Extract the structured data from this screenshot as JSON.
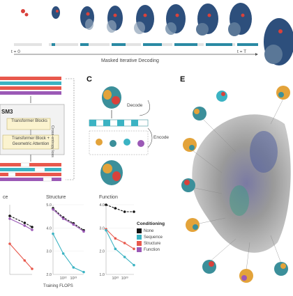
{
  "panel_a": {
    "caption": "Masked Iterative Decoding",
    "t_start": "t = 0",
    "t_end": "t = T"
  },
  "panel_b": {
    "model_name": "SM3",
    "block_outer": "Transformer Block + Geometric Attention",
    "block_inner": "Transformer Blocks",
    "loss_label": "Cross-entropy loss"
  },
  "panel_c": {
    "letter": "C",
    "decode_label": "Decode",
    "encode_label": "Encode"
  },
  "panel_e": {
    "letter": "E"
  },
  "legend": {
    "title": "Conditioning",
    "items": [
      {
        "label": "None",
        "color": "#111111"
      },
      {
        "label": "Sequence",
        "color": "#3bb3c3"
      },
      {
        "label": "Structure",
        "color": "#e8584c"
      },
      {
        "label": "Function",
        "color": "#9b59b6"
      }
    ]
  },
  "chart_data": [
    {
      "type": "line",
      "title": "ce",
      "xlabel": "",
      "series": [
        {
          "name": "None",
          "color": "#111111",
          "x": [
            1e+21,
            1e+23,
            1e+24
          ],
          "y": [
            4.6,
            4.35,
            4.2
          ]
        },
        {
          "name": "Function",
          "color": "#9b59b6",
          "x": [
            1e+21,
            1e+23,
            1e+24
          ],
          "y": [
            4.5,
            4.25,
            4.1
          ]
        },
        {
          "name": "Structure",
          "color": "#e8584c",
          "x": [
            1e+21,
            1e+23,
            1e+24
          ],
          "y": [
            3.6,
            3.0,
            2.7
          ]
        }
      ],
      "ylim": [
        2.5,
        5.0
      ],
      "yticks": []
    },
    {
      "type": "line",
      "title": "Structure",
      "xlabel": "Training FLOPS",
      "series": [
        {
          "name": "None",
          "color": "#111111",
          "x": [
            1e+21,
            1e+22,
            1e+23,
            1e+24
          ],
          "y": [
            4.85,
            4.45,
            4.2,
            3.9
          ]
        },
        {
          "name": "Function",
          "color": "#9b59b6",
          "x": [
            1e+21,
            1e+22,
            1e+23,
            1e+24
          ],
          "y": [
            4.8,
            4.4,
            4.15,
            3.85
          ]
        },
        {
          "name": "Sequence",
          "color": "#3bb3c3",
          "x": [
            1e+21,
            1e+22,
            1e+23,
            1e+24
          ],
          "y": [
            3.75,
            2.9,
            2.3,
            2.1
          ]
        }
      ],
      "ylim": [
        2.0,
        5.0
      ],
      "yticks": [
        "5.0",
        "4.0",
        "3.0",
        "2.0"
      ],
      "xticks": [
        "10²²",
        "10²³"
      ]
    },
    {
      "type": "line",
      "title": "Function",
      "xlabel": "",
      "series": [
        {
          "name": "None",
          "color": "#111111",
          "x": [
            1e+21,
            1e+22,
            1e+23,
            1e+24
          ],
          "y": [
            4.0,
            3.85,
            3.7,
            3.7
          ]
        },
        {
          "name": "Structure",
          "color": "#e8584c",
          "x": [
            1e+21,
            1e+22,
            1e+23,
            1e+24
          ],
          "y": [
            2.95,
            2.55,
            2.35,
            2.1
          ]
        },
        {
          "name": "Sequence",
          "color": "#3bb3c3",
          "x": [
            1e+21,
            1e+22,
            1e+23,
            1e+24
          ],
          "y": [
            2.9,
            2.1,
            1.75,
            1.4
          ]
        }
      ],
      "ylim": [
        1.0,
        4.0
      ],
      "yticks": [
        "4.0",
        "3.0",
        "2.0",
        "1.0"
      ],
      "xticks": [
        "10²²",
        "10²³"
      ]
    }
  ]
}
